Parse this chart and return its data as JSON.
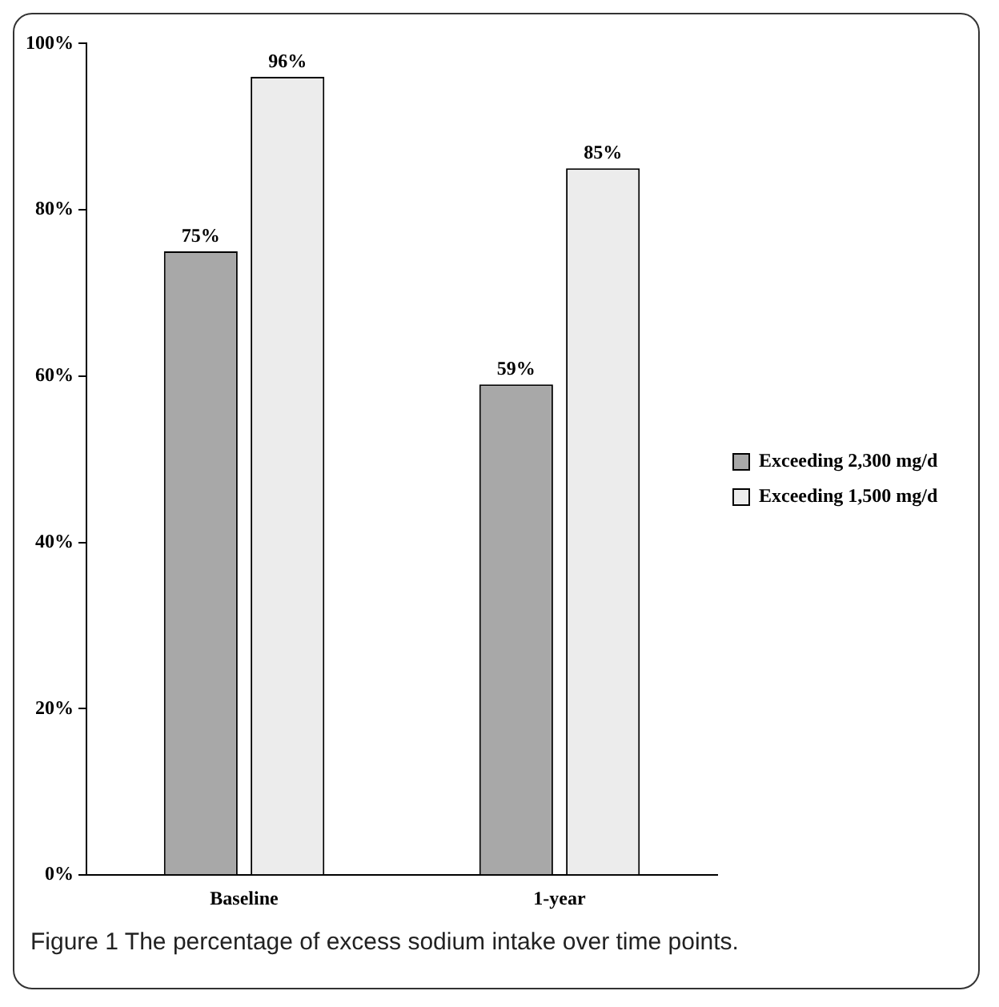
{
  "chart_data": {
    "type": "bar",
    "categories": [
      "Baseline",
      "1-year"
    ],
    "series": [
      {
        "name": "Exceeding 2,300 mg/d",
        "color": "#a8a8a8",
        "values": [
          75,
          59
        ],
        "value_labels": [
          "75%",
          "59%"
        ]
      },
      {
        "name": "Exceeding 1,500 mg/d",
        "color": "#ececec",
        "values": [
          96,
          85
        ],
        "value_labels": [
          "96%",
          "85%"
        ]
      }
    ],
    "ylim": [
      0,
      100
    ],
    "yticks": [
      {
        "value": 0,
        "label": "0%"
      },
      {
        "value": 20,
        "label": "20%"
      },
      {
        "value": 40,
        "label": "40%"
      },
      {
        "value": 60,
        "label": "60%"
      },
      {
        "value": 80,
        "label": "80%"
      },
      {
        "value": 100,
        "label": "100%"
      }
    ],
    "grid": false,
    "legend": "right",
    "annotations": [
      "Figure 1 The percentage of excess sodium intake over time points."
    ]
  }
}
